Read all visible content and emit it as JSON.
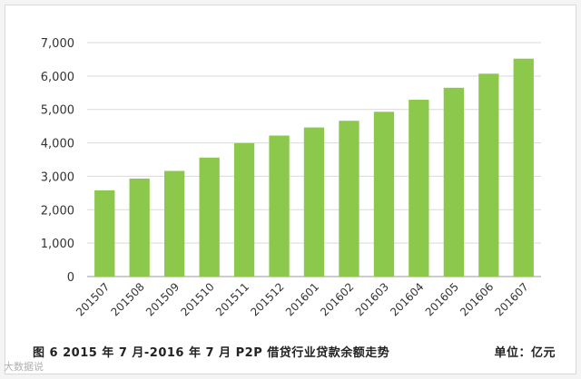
{
  "caption": {
    "text": "图 6   2015 年 7 月-2016 年 7 月 P2P 借贷行业贷款余额走势",
    "unit": "单位：亿元"
  },
  "watermark": "大数据说",
  "colors": {
    "bar": "#8cc84b",
    "grid": "#d9d9d9",
    "axis": "#999999"
  },
  "chart_data": {
    "type": "bar",
    "title": "",
    "xlabel": "",
    "ylabel": "",
    "categories": [
      "201507",
      "201508",
      "201509",
      "201510",
      "201511",
      "201512",
      "201601",
      "201602",
      "201603",
      "201604",
      "201605",
      "201606",
      "201607"
    ],
    "values": [
      2580,
      2930,
      3160,
      3560,
      3990,
      4220,
      4460,
      4660,
      4930,
      5290,
      5650,
      6070,
      6520
    ],
    "ylim": [
      0,
      7000
    ],
    "yticks": [
      "0",
      "1,000",
      "2,000",
      "3,000",
      "4,000",
      "5,000",
      "6,000",
      "7,000"
    ],
    "grid": true,
    "legend": "none"
  }
}
